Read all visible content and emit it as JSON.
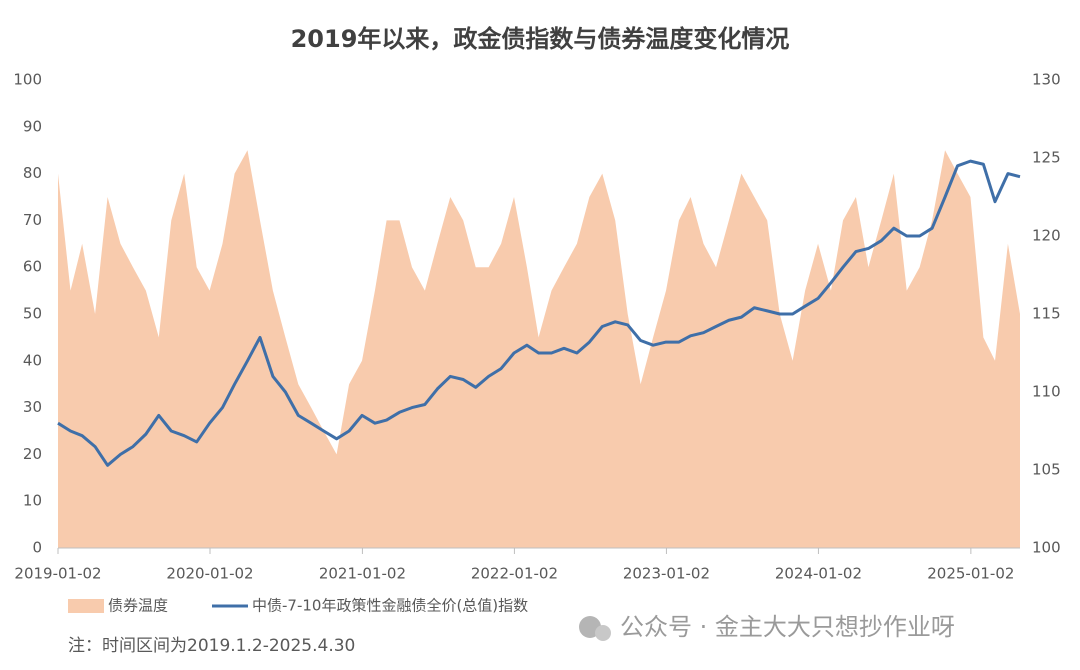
{
  "chart_data": {
    "type": "area_line",
    "title": "2019年以来，政金债指数与债券温度变化情况",
    "note": "注：时间区间为2019.1.2-2025.4.30",
    "watermark": "公众号 · 金主大大只想抄作业呀",
    "x": [
      "2019-01-02",
      "2019-02-01",
      "2019-03-01",
      "2019-04-01",
      "2019-05-01",
      "2019-06-01",
      "2019-07-01",
      "2019-08-01",
      "2019-09-01",
      "2019-10-01",
      "2019-11-01",
      "2019-12-01",
      "2020-01-01",
      "2020-02-01",
      "2020-03-01",
      "2020-04-01",
      "2020-05-01",
      "2020-06-01",
      "2020-07-01",
      "2020-08-01",
      "2020-09-01",
      "2020-10-01",
      "2020-11-01",
      "2020-12-01",
      "2021-01-01",
      "2021-02-01",
      "2021-03-01",
      "2021-04-01",
      "2021-05-01",
      "2021-06-01",
      "2021-07-01",
      "2021-08-01",
      "2021-09-01",
      "2021-10-01",
      "2021-11-01",
      "2021-12-01",
      "2022-01-01",
      "2022-02-01",
      "2022-03-01",
      "2022-04-01",
      "2022-05-01",
      "2022-06-01",
      "2022-07-01",
      "2022-08-01",
      "2022-09-01",
      "2022-10-01",
      "2022-11-01",
      "2022-12-01",
      "2023-01-01",
      "2023-02-01",
      "2023-03-01",
      "2023-04-01",
      "2023-05-01",
      "2023-06-01",
      "2023-07-01",
      "2023-08-01",
      "2023-09-01",
      "2023-10-01",
      "2023-11-01",
      "2023-12-01",
      "2024-01-01",
      "2024-02-01",
      "2024-03-01",
      "2024-04-01",
      "2024-05-01",
      "2024-06-01",
      "2024-07-01",
      "2024-08-01",
      "2024-09-01",
      "2024-10-01",
      "2024-11-01",
      "2024-12-01",
      "2025-01-01",
      "2025-02-01",
      "2025-03-01",
      "2025-04-01",
      "2025-04-30"
    ],
    "xlim": [
      "2019-01-02",
      "2025-04-30"
    ],
    "xticks": [
      "2019-01-02",
      "2020-01-02",
      "2021-01-02",
      "2022-01-02",
      "2023-01-02",
      "2024-01-02",
      "2025-01-02"
    ],
    "ylim": [
      0,
      100
    ],
    "yticks": [
      0,
      10,
      20,
      30,
      40,
      50,
      60,
      70,
      80,
      90,
      100
    ],
    "y2lim": [
      100,
      130
    ],
    "y2ticks": [
      100,
      105,
      110,
      115,
      120,
      125,
      130
    ],
    "series": [
      {
        "name": "债券温度",
        "kind": "area",
        "color": "#f8cbad",
        "values": [
          80,
          55,
          65,
          50,
          75,
          65,
          60,
          55,
          45,
          70,
          80,
          60,
          55,
          65,
          80,
          85,
          70,
          55,
          45,
          35,
          30,
          25,
          20,
          35,
          40,
          55,
          70,
          70,
          60,
          55,
          65,
          75,
          70,
          60,
          60,
          65,
          75,
          60,
          45,
          55,
          60,
          65,
          75,
          80,
          70,
          50,
          35,
          45,
          55,
          70,
          75,
          65,
          60,
          70,
          80,
          75,
          70,
          50,
          40,
          55,
          65,
          55,
          70,
          75,
          60,
          70,
          80,
          55,
          60,
          70,
          85,
          80,
          75,
          45,
          40,
          65,
          50
        ]
      },
      {
        "name": "中债-7-10年政策性金融债全价(总值)指数",
        "kind": "line",
        "color": "#3f6fa8",
        "axis": "y2",
        "values": [
          108,
          107.5,
          107.2,
          106.5,
          105.3,
          106,
          106.5,
          107.3,
          108.5,
          107.5,
          107.2,
          106.8,
          108,
          109,
          110.5,
          112,
          113.5,
          111,
          110,
          108.5,
          108,
          107.5,
          107,
          107.5,
          108.5,
          108,
          108.2,
          108.7,
          109,
          109.2,
          110.2,
          111,
          110.8,
          110.3,
          111,
          111.5,
          112.5,
          113,
          112.5,
          112.5,
          112.8,
          112.5,
          113.2,
          114.2,
          114.5,
          114.3,
          113.3,
          113,
          113.2,
          113.2,
          113.6,
          113.8,
          114.2,
          114.6,
          114.8,
          115.4,
          115.2,
          115,
          115,
          115.5,
          116,
          117,
          118,
          119,
          119.2,
          119.7,
          120.5,
          120,
          120,
          120.5,
          122.5,
          124.5,
          124.8,
          124.6,
          122.2,
          124,
          123.8
        ]
      }
    ]
  }
}
